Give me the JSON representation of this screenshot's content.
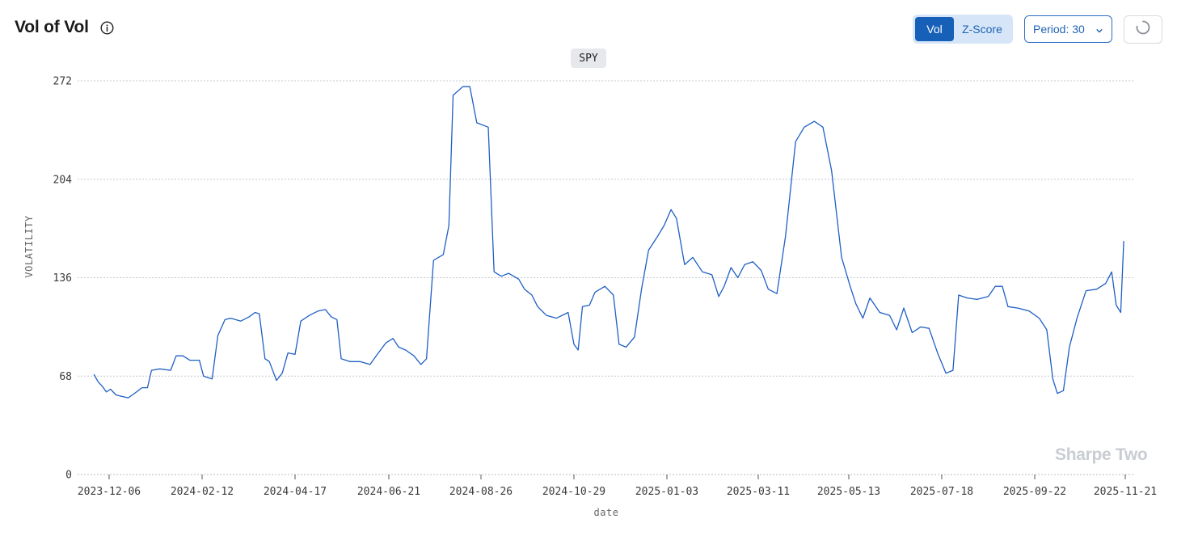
{
  "header": {
    "title": "Vol of Vol",
    "info_icon": "info-icon"
  },
  "controls": {
    "toggle": {
      "vol_label": "Vol",
      "zscore_label": "Z-Score",
      "active": "Vol"
    },
    "period_label": "Period: 30",
    "refresh_icon": "spinner-icon"
  },
  "watermark": "Sharpe Two",
  "colors": {
    "line": "#1f5fc4",
    "accent": "#1760b8"
  },
  "chart_data": {
    "type": "line",
    "series_label": "SPY",
    "xlabel": "date",
    "ylabel": "VOLATILITY",
    "ylim": [
      0,
      272
    ],
    "yticks": [
      0,
      68,
      136,
      204,
      272
    ],
    "grid": true,
    "x_start": "2023-11-22",
    "x_end": "2025-11-21",
    "xticks": [
      "2023-12-06",
      "2024-02-12",
      "2024-04-17",
      "2024-06-21",
      "2024-08-26",
      "2024-10-29",
      "2025-01-03",
      "2025-03-11",
      "2025-05-13",
      "2025-07-18",
      "2025-09-22",
      "2025-11-21"
    ],
    "series": [
      {
        "name": "SPY",
        "points": [
          [
            "2023-11-25",
            69
          ],
          [
            "2023-11-28",
            64
          ],
          [
            "2023-12-01",
            61
          ],
          [
            "2023-12-04",
            57
          ],
          [
            "2023-12-07",
            59
          ],
          [
            "2023-12-11",
            55
          ],
          [
            "2023-12-15",
            54
          ],
          [
            "2023-12-20",
            53
          ],
          [
            "2023-12-26",
            57
          ],
          [
            "2023-12-30",
            60
          ],
          [
            "2024-01-03",
            60
          ],
          [
            "2024-01-06",
            72
          ],
          [
            "2024-01-12",
            73
          ],
          [
            "2024-01-20",
            72
          ],
          [
            "2024-01-24",
            82
          ],
          [
            "2024-01-29",
            82
          ],
          [
            "2024-02-03",
            79
          ],
          [
            "2024-02-10",
            79
          ],
          [
            "2024-02-13",
            68
          ],
          [
            "2024-02-19",
            66
          ],
          [
            "2024-02-23",
            96
          ],
          [
            "2024-02-28",
            107
          ],
          [
            "2024-03-03",
            108
          ],
          [
            "2024-03-10",
            106
          ],
          [
            "2024-03-16",
            109
          ],
          [
            "2024-03-20",
            112
          ],
          [
            "2024-03-23",
            111
          ],
          [
            "2024-03-27",
            80
          ],
          [
            "2024-03-30",
            78
          ],
          [
            "2024-04-04",
            65
          ],
          [
            "2024-04-08",
            70
          ],
          [
            "2024-04-12",
            84
          ],
          [
            "2024-04-17",
            83
          ],
          [
            "2024-04-21",
            106
          ],
          [
            "2024-04-27",
            110
          ],
          [
            "2024-05-03",
            113
          ],
          [
            "2024-05-08",
            114
          ],
          [
            "2024-05-12",
            109
          ],
          [
            "2024-05-16",
            107
          ],
          [
            "2024-05-19",
            80
          ],
          [
            "2024-05-25",
            78
          ],
          [
            "2024-06-01",
            78
          ],
          [
            "2024-06-08",
            76
          ],
          [
            "2024-06-13",
            83
          ],
          [
            "2024-06-19",
            91
          ],
          [
            "2024-06-24",
            94
          ],
          [
            "2024-06-28",
            88
          ],
          [
            "2024-07-03",
            86
          ],
          [
            "2024-07-09",
            82
          ],
          [
            "2024-07-14",
            76
          ],
          [
            "2024-07-18",
            80
          ],
          [
            "2024-07-23",
            148
          ],
          [
            "2024-07-30",
            152
          ],
          [
            "2024-08-03",
            172
          ],
          [
            "2024-08-06",
            262
          ],
          [
            "2024-08-13",
            268
          ],
          [
            "2024-08-18",
            268
          ],
          [
            "2024-08-23",
            243
          ],
          [
            "2024-08-31",
            240
          ],
          [
            "2024-09-04",
            140
          ],
          [
            "2024-09-09",
            137
          ],
          [
            "2024-09-14",
            139
          ],
          [
            "2024-09-21",
            135
          ],
          [
            "2024-09-25",
            128
          ],
          [
            "2024-09-30",
            124
          ],
          [
            "2024-10-04",
            116
          ],
          [
            "2024-10-10",
            110
          ],
          [
            "2024-10-17",
            108
          ],
          [
            "2024-10-25",
            112
          ],
          [
            "2024-10-29",
            90
          ],
          [
            "2024-11-01",
            86
          ],
          [
            "2024-11-04",
            116
          ],
          [
            "2024-11-09",
            117
          ],
          [
            "2024-11-13",
            126
          ],
          [
            "2024-11-20",
            130
          ],
          [
            "2024-11-26",
            124
          ],
          [
            "2024-11-30",
            90
          ],
          [
            "2024-12-05",
            88
          ],
          [
            "2024-12-11",
            95
          ],
          [
            "2024-12-16",
            128
          ],
          [
            "2024-12-21",
            155
          ],
          [
            "2024-12-27",
            164
          ],
          [
            "2025-01-01",
            172
          ],
          [
            "2025-01-06",
            183
          ],
          [
            "2025-01-10",
            177
          ],
          [
            "2025-01-16",
            145
          ],
          [
            "2025-01-22",
            150
          ],
          [
            "2025-01-29",
            140
          ],
          [
            "2025-02-05",
            138
          ],
          [
            "2025-02-10",
            123
          ],
          [
            "2025-02-14",
            130
          ],
          [
            "2025-02-19",
            143
          ],
          [
            "2025-02-24",
            136
          ],
          [
            "2025-03-01",
            145
          ],
          [
            "2025-03-07",
            147
          ],
          [
            "2025-03-13",
            141
          ],
          [
            "2025-03-18",
            128
          ],
          [
            "2025-03-24",
            125
          ],
          [
            "2025-03-30",
            165
          ],
          [
            "2025-04-06",
            230
          ],
          [
            "2025-04-12",
            240
          ],
          [
            "2025-04-19",
            244
          ],
          [
            "2025-04-25",
            240
          ],
          [
            "2025-05-01",
            210
          ],
          [
            "2025-05-08",
            150
          ],
          [
            "2025-05-14",
            130
          ],
          [
            "2025-05-18",
            118
          ],
          [
            "2025-05-23",
            108
          ],
          [
            "2025-05-28",
            122
          ],
          [
            "2025-06-04",
            112
          ],
          [
            "2025-06-11",
            110
          ],
          [
            "2025-06-16",
            100
          ],
          [
            "2025-06-21",
            115
          ],
          [
            "2025-06-27",
            98
          ],
          [
            "2025-07-03",
            102
          ],
          [
            "2025-07-09",
            101
          ],
          [
            "2025-07-15",
            84
          ],
          [
            "2025-07-21",
            70
          ],
          [
            "2025-07-26",
            72
          ],
          [
            "2025-07-30",
            124
          ],
          [
            "2025-08-05",
            122
          ],
          [
            "2025-08-12",
            121
          ],
          [
            "2025-08-20",
            123
          ],
          [
            "2025-08-25",
            130
          ],
          [
            "2025-08-30",
            130
          ],
          [
            "2025-09-03",
            116
          ],
          [
            "2025-09-10",
            115
          ],
          [
            "2025-09-18",
            113
          ],
          [
            "2025-09-25",
            108
          ],
          [
            "2025-09-30",
            100
          ],
          [
            "2025-10-04",
            66
          ],
          [
            "2025-10-07",
            56
          ],
          [
            "2025-10-11",
            58
          ],
          [
            "2025-10-15",
            88
          ],
          [
            "2025-10-20",
            108
          ],
          [
            "2025-10-26",
            127
          ],
          [
            "2025-11-02",
            128
          ],
          [
            "2025-11-08",
            132
          ],
          [
            "2025-11-12",
            140
          ],
          [
            "2025-11-15",
            117
          ],
          [
            "2025-11-18",
            112
          ],
          [
            "2025-11-20",
            161
          ]
        ]
      }
    ]
  }
}
